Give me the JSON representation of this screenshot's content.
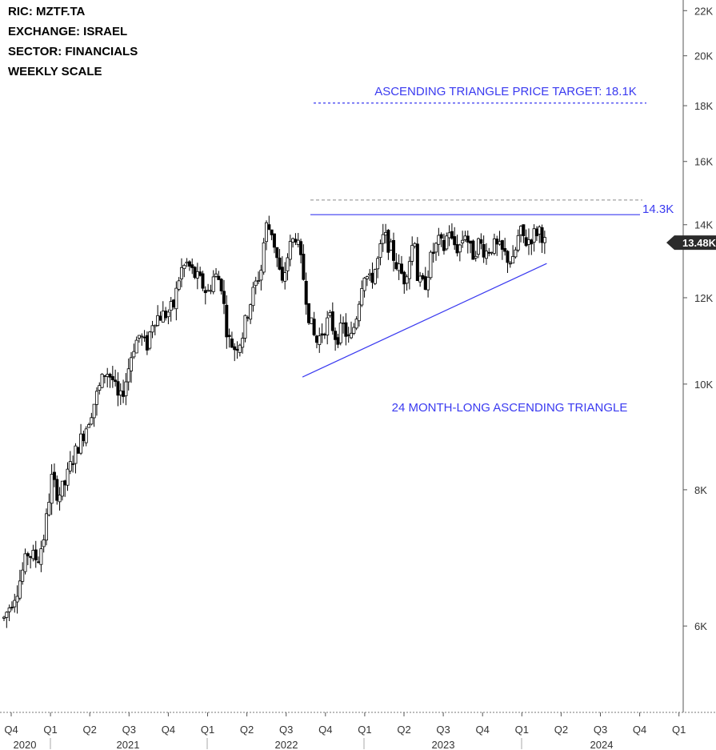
{
  "header": {
    "ric": "RIC:  MZTF.TA",
    "exchange": "EXCHANGE:  ISRAEL",
    "sector": "SECTOR:  FINANCIALS",
    "scale": "WEEKLY SCALE"
  },
  "colors": {
    "candle": "#000000",
    "pattern": "#3a3af0",
    "target": "#3a3af0",
    "resistance_gray": "#a0a0a0",
    "price_tag_bg": "#2b2b2b",
    "axis": "#555555"
  },
  "chart_data": {
    "type": "candlestick",
    "scale": "log",
    "ylim": [
      5000,
      22500
    ],
    "y_ticks": [
      {
        "value": 6000,
        "label": "6K"
      },
      {
        "value": 8000,
        "label": "8K"
      },
      {
        "value": 10000,
        "label": "10K"
      },
      {
        "value": 12000,
        "label": "12K"
      },
      {
        "value": 14000,
        "label": "14K"
      },
      {
        "value": 16000,
        "label": "16K"
      },
      {
        "value": 18000,
        "label": "18K"
      },
      {
        "value": 20000,
        "label": "20K"
      },
      {
        "value": 22000,
        "label": "22K"
      }
    ],
    "x_ticks": [
      "Q4",
      "Q1",
      "Q2",
      "Q3",
      "Q4",
      "Q1",
      "Q2",
      "Q3",
      "Q4",
      "Q1",
      "Q2",
      "Q3",
      "Q4",
      "Q1",
      "Q2",
      "Q3",
      "Q4",
      "Q1"
    ],
    "x_years": [
      "2020",
      "2021",
      "2022",
      "2023",
      "2024"
    ],
    "last_price_label": "13.48K",
    "last_price": 13480,
    "resistance": {
      "value": 14300,
      "label": "14.3K"
    },
    "gray_resistance": 14750,
    "target": {
      "value": 18100,
      "label": "ASCENDING TRIANGLE PRICE TARGET: 18.1K"
    },
    "triangle_label": "24 MONTH-LONG ASCENDING TRIANGLE",
    "triangle_support": [
      [
        0.44,
        10150
      ],
      [
        0.8,
        12900
      ]
    ],
    "path": [
      [
        0,
        6100
      ],
      [
        0.02,
        6500
      ],
      [
        0.035,
        7000
      ],
      [
        0.05,
        6900
      ],
      [
        0.06,
        7300
      ],
      [
        0.07,
        8200
      ],
      [
        0.08,
        7900
      ],
      [
        0.09,
        8100
      ],
      [
        0.1,
        8500
      ],
      [
        0.11,
        8800
      ],
      [
        0.12,
        9100
      ],
      [
        0.135,
        9700
      ],
      [
        0.15,
        10300
      ],
      [
        0.16,
        10100
      ],
      [
        0.17,
        9600
      ],
      [
        0.18,
        10100
      ],
      [
        0.19,
        10800
      ],
      [
        0.2,
        11100
      ],
      [
        0.21,
        10800
      ],
      [
        0.22,
        11500
      ],
      [
        0.24,
        11600
      ],
      [
        0.25,
        11800
      ],
      [
        0.26,
        12700
      ],
      [
        0.27,
        12900
      ],
      [
        0.28,
        12600
      ],
      [
        0.29,
        12400
      ],
      [
        0.3,
        12100
      ],
      [
        0.31,
        12600
      ],
      [
        0.32,
        12400
      ],
      [
        0.33,
        11000
      ],
      [
        0.34,
        10800
      ],
      [
        0.35,
        11000
      ],
      [
        0.36,
        11700
      ],
      [
        0.37,
        12300
      ],
      [
        0.38,
        12800
      ],
      [
        0.385,
        14000
      ],
      [
        0.395,
        13800
      ],
      [
        0.41,
        12300
      ],
      [
        0.42,
        13300
      ],
      [
        0.43,
        13700
      ],
      [
        0.44,
        12700
      ],
      [
        0.45,
        11500
      ],
      [
        0.46,
        10900
      ],
      [
        0.47,
        11200
      ],
      [
        0.48,
        11500
      ],
      [
        0.49,
        11000
      ],
      [
        0.5,
        11300
      ],
      [
        0.51,
        10900
      ],
      [
        0.52,
        11600
      ],
      [
        0.53,
        12700
      ],
      [
        0.54,
        12400
      ],
      [
        0.55,
        12900
      ],
      [
        0.56,
        13700
      ],
      [
        0.57,
        13300
      ],
      [
        0.58,
        12800
      ],
      [
        0.59,
        12500
      ],
      [
        0.6,
        13200
      ],
      [
        0.605,
        13800
      ],
      [
        0.61,
        12400
      ],
      [
        0.62,
        12300
      ],
      [
        0.63,
        13100
      ],
      [
        0.64,
        13500
      ],
      [
        0.65,
        13300
      ],
      [
        0.655,
        14000
      ],
      [
        0.66,
        13500
      ],
      [
        0.67,
        13300
      ],
      [
        0.68,
        13800
      ],
      [
        0.69,
        13100
      ],
      [
        0.7,
        13500
      ],
      [
        0.71,
        13200
      ],
      [
        0.72,
        13400
      ],
      [
        0.73,
        13300
      ],
      [
        0.74,
        13100
      ],
      [
        0.75,
        12900
      ],
      [
        0.76,
        13800
      ],
      [
        0.77,
        13500
      ],
      [
        0.78,
        13700
      ],
      [
        0.79,
        13900
      ],
      [
        0.797,
        13480
      ]
    ]
  }
}
